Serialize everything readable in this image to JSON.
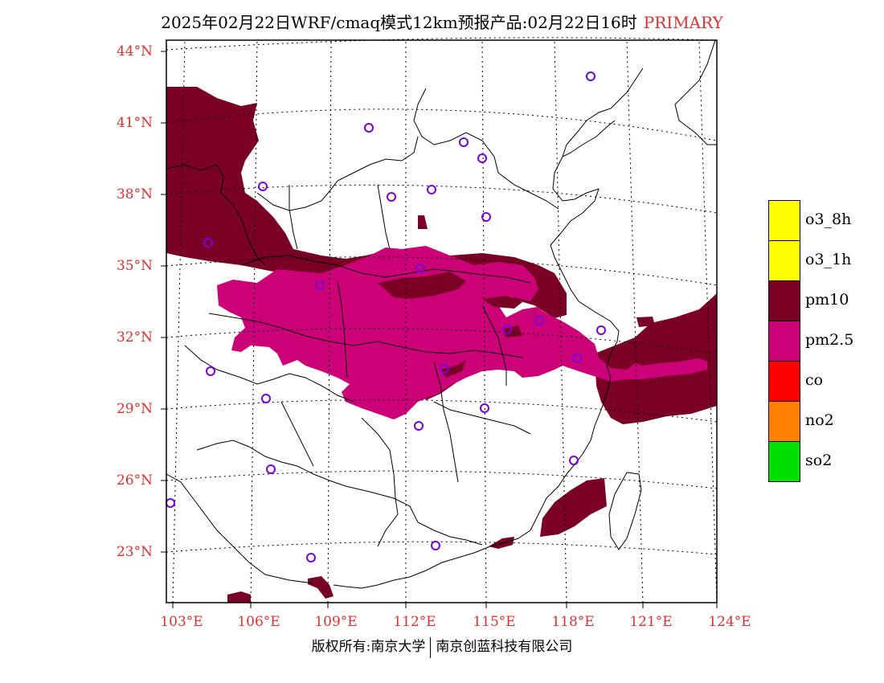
{
  "header": {
    "title": "2025年02月22日WRF/cmaq模式12km预报产品:02月22日16时",
    "tag": "PRIMARY"
  },
  "colors": {
    "label_red": "#e03030",
    "pm10": "#7a0026",
    "pm25": "#cc0077",
    "o3_8h": "#ffff00",
    "o3_1h": "#ffff00",
    "co": "#ff0000",
    "no2": "#ff7f00",
    "so2": "#00e000",
    "station": "#7a00e0"
  },
  "map": {
    "lat_labels": [
      "44°N",
      "41°N",
      "38°N",
      "35°N",
      "32°N",
      "29°N",
      "26°N",
      "23°N"
    ],
    "lon_labels": [
      "103°E",
      "106°E",
      "109°E",
      "112°E",
      "115°E",
      "118°E",
      "121°E",
      "124°E"
    ]
  },
  "legend": [
    {
      "label": "o3_8h",
      "color": "#ffff00"
    },
    {
      "label": "o3_1h",
      "color": "#ffff00"
    },
    {
      "label": "pm10",
      "color": "#7a0026"
    },
    {
      "label": "pm2.5",
      "color": "#cc0077"
    },
    {
      "label": "co",
      "color": "#ff0000"
    },
    {
      "label": "no2",
      "color": "#ff7f00"
    },
    {
      "label": "so2",
      "color": "#00e000"
    }
  ],
  "footer": {
    "left": "版权所有:南京大学",
    "right": "南京创蓝科技有限公司"
  }
}
